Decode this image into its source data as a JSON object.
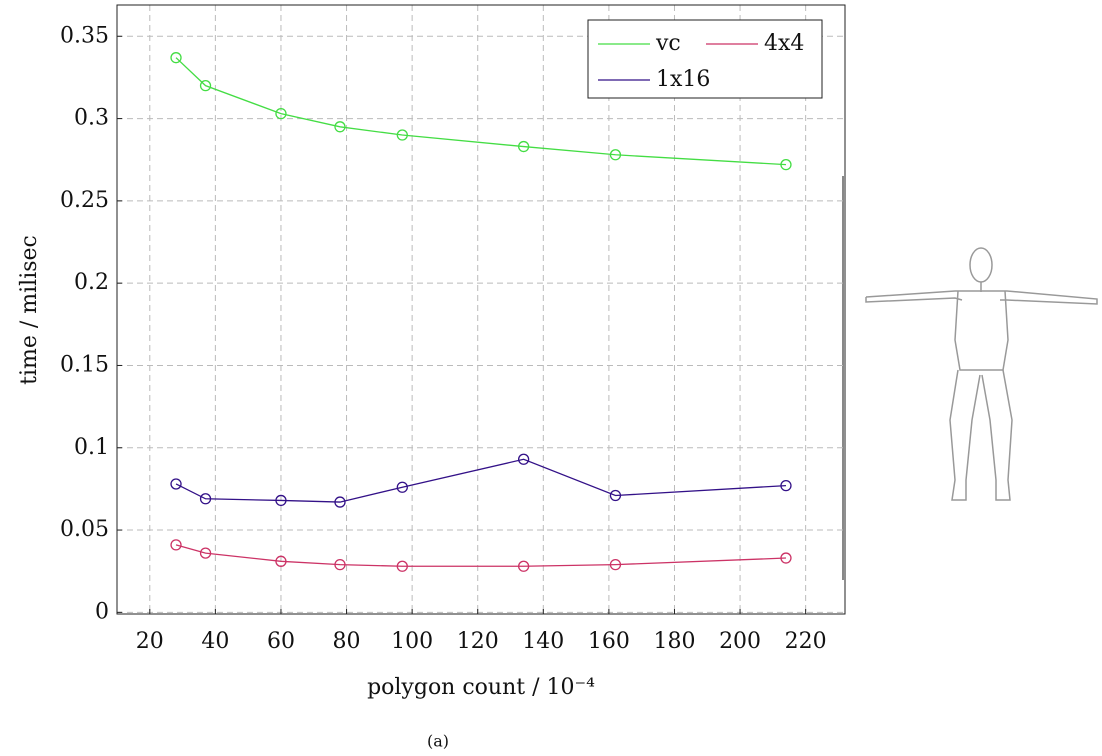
{
  "chart_data": {
    "type": "line",
    "x_label": "polygon count / 10⁻⁴",
    "y_label": "time / milisec",
    "caption": "(a)",
    "x": [
      28,
      37,
      60,
      78,
      97,
      134,
      162,
      214
    ],
    "series": [
      {
        "name": "vc",
        "color": "#44dd44",
        "values": [
          0.337,
          0.32,
          0.303,
          0.295,
          0.29,
          0.283,
          0.278,
          0.272
        ]
      },
      {
        "name": "4x4",
        "color": "#cc3366",
        "values": [
          0.041,
          0.036,
          0.031,
          0.029,
          0.028,
          0.028,
          0.029,
          0.033
        ]
      },
      {
        "name": "1x16",
        "color": "#331188",
        "values": [
          0.078,
          0.069,
          0.068,
          0.067,
          0.076,
          0.093,
          0.071,
          0.077
        ]
      }
    ],
    "xlim": [
      10,
      232
    ],
    "ylim": [
      -0.001,
      0.369
    ],
    "xticks": [
      20,
      40,
      60,
      80,
      100,
      120,
      140,
      160,
      180,
      200,
      220
    ],
    "yticks": [
      0,
      0.05,
      0.1,
      0.15,
      0.2,
      0.25,
      0.3,
      0.35
    ],
    "grid": true,
    "legend": "upper-right"
  }
}
